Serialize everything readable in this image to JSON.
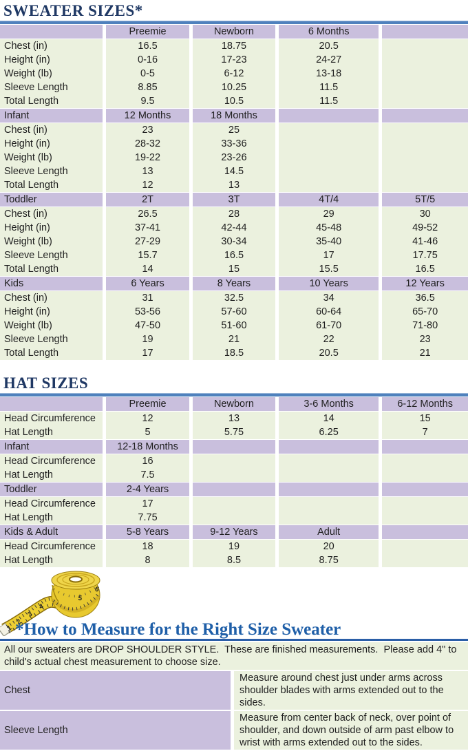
{
  "titles": {
    "sweater": "SWEATER SIZES*",
    "hat": "HAT SIZES",
    "measure": "*How to Measure for the Right Size Sweater"
  },
  "colors": {
    "purple": "#C9BFDD",
    "green": "#EBF1DE",
    "navy": "#1F3864",
    "bar-blue": "#4F81BD",
    "measure-blue": "#1F5FA8",
    "rule-blue": "#2B5EA7",
    "ink": "#1f1f1f"
  },
  "layout": {
    "col_widths": [
      "22.3%",
      "18.5%",
      "18.4%",
      "22.1%",
      "18.7%"
    ]
  },
  "sweater_table": {
    "row_labels": [
      "Chest (in)",
      "Height (in)",
      "Weight (lb)",
      "Sleeve Length",
      "Total Length"
    ],
    "sections": [
      {
        "name": "",
        "columns": [
          "Preemie",
          "Newborn",
          "6 Months",
          ""
        ],
        "rows": [
          [
            "16.5",
            "18.75",
            "20.5",
            ""
          ],
          [
            "0-16",
            "17-23",
            "24-27",
            ""
          ],
          [
            "0-5",
            "6-12",
            "13-18",
            ""
          ],
          [
            "8.85",
            "10.25",
            "11.5",
            ""
          ],
          [
            "9.5",
            "10.5",
            "11.5",
            ""
          ]
        ]
      },
      {
        "name": "Infant",
        "columns": [
          "12 Months",
          "18 Months",
          "",
          ""
        ],
        "rows": [
          [
            "23",
            "25",
            "",
            ""
          ],
          [
            "28-32",
            "33-36",
            "",
            ""
          ],
          [
            "19-22",
            "23-26",
            "",
            ""
          ],
          [
            "13",
            "14.5",
            "",
            ""
          ],
          [
            "12",
            "13",
            "",
            ""
          ]
        ]
      },
      {
        "name": "Toddler",
        "columns": [
          "2T",
          "3T",
          "4T/4",
          "5T/5"
        ],
        "rows": [
          [
            "26.5",
            "28",
            "29",
            "30"
          ],
          [
            "37-41",
            "42-44",
            "45-48",
            "49-52"
          ],
          [
            "27-29",
            "30-34",
            "35-40",
            "41-46"
          ],
          [
            "15.7",
            "16.5",
            "17",
            "17.75"
          ],
          [
            "14",
            "15",
            "15.5",
            "16.5"
          ]
        ]
      },
      {
        "name": "Kids",
        "columns": [
          "6 Years",
          "8 Years",
          "10 Years",
          "12 Years"
        ],
        "rows": [
          [
            "31",
            "32.5",
            "34",
            "36.5"
          ],
          [
            "53-56",
            "57-60",
            "60-64",
            "65-70"
          ],
          [
            "47-50",
            "51-60",
            "61-70",
            "71-80"
          ],
          [
            "19",
            "21",
            "22",
            "23"
          ],
          [
            "17",
            "18.5",
            "20.5",
            "21"
          ]
        ]
      }
    ]
  },
  "hat_table": {
    "row_labels": [
      "Head Circumference",
      "Hat Length"
    ],
    "sections": [
      {
        "name": "",
        "columns": [
          "Preemie",
          "Newborn",
          "3-6 Months",
          "6-12 Months"
        ],
        "rows": [
          [
            "12",
            "13",
            "14",
            "15"
          ],
          [
            "5",
            "5.75",
            "6.25",
            "7"
          ]
        ]
      },
      {
        "name": "Infant",
        "columns": [
          "12-18 Months",
          "",
          "",
          ""
        ],
        "rows": [
          [
            "16",
            "",
            "",
            ""
          ],
          [
            "7.5",
            "",
            "",
            ""
          ]
        ]
      },
      {
        "name": "Toddler",
        "columns": [
          "2-4 Years",
          "",
          "",
          ""
        ],
        "rows": [
          [
            "17",
            "",
            "",
            ""
          ],
          [
            "7.75",
            "",
            "",
            ""
          ]
        ]
      },
      {
        "name": "Kids & Adult",
        "columns": [
          "5-8 Years",
          "9-12 Years",
          "Adult",
          ""
        ],
        "rows": [
          [
            "18",
            "19",
            "20",
            ""
          ],
          [
            "8",
            "8.5",
            "8.75",
            ""
          ]
        ]
      }
    ]
  },
  "tape": {
    "numbers": [
      "1",
      "2",
      "3",
      "4",
      "5",
      "6"
    ]
  },
  "measure": {
    "intro": "All our sweaters are DROP SHOULDER STYLE.  These are finished measurements.  Please add 4\" to child's actual chest measurement to choose size.",
    "rows": [
      {
        "label": "Chest",
        "text": "Measure around chest just under arms across shoulder blades with arms extended out to the sides."
      },
      {
        "label": "Sleeve Length",
        "text": "Measure from center back of neck, over point of shoulder, and down outside of arm past elbow to wrist with arms extended out to the sides."
      }
    ]
  }
}
